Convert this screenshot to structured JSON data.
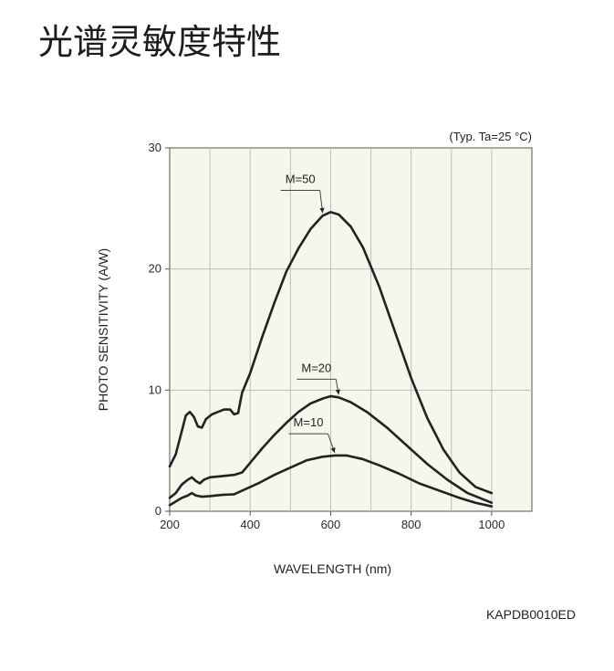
{
  "page": {
    "title": "光谱灵敏度特性",
    "figure_code": "KAPDB0010ED"
  },
  "chart_data": {
    "type": "line",
    "title": "",
    "xlabel": "WAVELENGTH (nm)",
    "ylabel": "PHOTO SENSITIVITY (A/W)",
    "condition_note": "(Typ. Ta=25 °C)",
    "xlim": [
      200,
      1100
    ],
    "ylim": [
      0,
      30
    ],
    "x_ticks": [
      200,
      400,
      600,
      800,
      1000
    ],
    "y_ticks": [
      0,
      10,
      20,
      30
    ],
    "grid": true,
    "colors": {
      "background": "#f6f6ec",
      "grid": "#bdbdbd",
      "line": "#222222",
      "axis": "#555555"
    },
    "series": [
      {
        "name": "M=50",
        "label_at": [
          580,
          26.8
        ],
        "points": [
          [
            200,
            3.7
          ],
          [
            215,
            4.7
          ],
          [
            230,
            6.6
          ],
          [
            240,
            7.9
          ],
          [
            250,
            8.2
          ],
          [
            260,
            7.8
          ],
          [
            270,
            7.0
          ],
          [
            280,
            6.9
          ],
          [
            290,
            7.6
          ],
          [
            305,
            8.0
          ],
          [
            320,
            8.2
          ],
          [
            335,
            8.4
          ],
          [
            350,
            8.4
          ],
          [
            360,
            8.0
          ],
          [
            370,
            8.1
          ],
          [
            380,
            9.8
          ],
          [
            400,
            11.4
          ],
          [
            430,
            14.4
          ],
          [
            460,
            17.2
          ],
          [
            490,
            19.8
          ],
          [
            520,
            21.7
          ],
          [
            550,
            23.3
          ],
          [
            580,
            24.4
          ],
          [
            600,
            24.7
          ],
          [
            620,
            24.5
          ],
          [
            650,
            23.5
          ],
          [
            680,
            21.8
          ],
          [
            720,
            18.6
          ],
          [
            760,
            14.8
          ],
          [
            800,
            11.0
          ],
          [
            840,
            7.7
          ],
          [
            880,
            5.1
          ],
          [
            920,
            3.2
          ],
          [
            960,
            2.0
          ],
          [
            1000,
            1.5
          ]
        ]
      },
      {
        "name": "M=20",
        "label_at": [
          620,
          11.2
        ],
        "points": [
          [
            200,
            1.1
          ],
          [
            215,
            1.5
          ],
          [
            230,
            2.2
          ],
          [
            245,
            2.6
          ],
          [
            255,
            2.8
          ],
          [
            265,
            2.5
          ],
          [
            275,
            2.3
          ],
          [
            285,
            2.6
          ],
          [
            300,
            2.8
          ],
          [
            330,
            2.9
          ],
          [
            360,
            3.0
          ],
          [
            380,
            3.2
          ],
          [
            400,
            4.0
          ],
          [
            430,
            5.2
          ],
          [
            460,
            6.3
          ],
          [
            490,
            7.3
          ],
          [
            520,
            8.2
          ],
          [
            550,
            8.9
          ],
          [
            580,
            9.3
          ],
          [
            600,
            9.5
          ],
          [
            620,
            9.4
          ],
          [
            650,
            9.0
          ],
          [
            690,
            8.2
          ],
          [
            740,
            6.9
          ],
          [
            790,
            5.4
          ],
          [
            840,
            3.9
          ],
          [
            890,
            2.6
          ],
          [
            940,
            1.5
          ],
          [
            1000,
            0.7
          ]
        ]
      },
      {
        "name": "M=10",
        "label_at": [
          600,
          6.7
        ],
        "points": [
          [
            200,
            0.5
          ],
          [
            215,
            0.8
          ],
          [
            230,
            1.1
          ],
          [
            245,
            1.3
          ],
          [
            255,
            1.5
          ],
          [
            265,
            1.3
          ],
          [
            280,
            1.2
          ],
          [
            300,
            1.25
          ],
          [
            330,
            1.35
          ],
          [
            360,
            1.4
          ],
          [
            380,
            1.7
          ],
          [
            420,
            2.3
          ],
          [
            460,
            3.0
          ],
          [
            500,
            3.6
          ],
          [
            540,
            4.2
          ],
          [
            580,
            4.5
          ],
          [
            610,
            4.6
          ],
          [
            640,
            4.6
          ],
          [
            680,
            4.3
          ],
          [
            720,
            3.8
          ],
          [
            770,
            3.1
          ],
          [
            820,
            2.3
          ],
          [
            870,
            1.7
          ],
          [
            920,
            1.1
          ],
          [
            960,
            0.7
          ],
          [
            1000,
            0.4
          ]
        ]
      }
    ],
    "annotation_labels": [
      {
        "series": "M=50",
        "text": "M=50"
      },
      {
        "series": "M=20",
        "text": "M=20"
      },
      {
        "series": "M=10",
        "text": "M=10"
      }
    ]
  }
}
